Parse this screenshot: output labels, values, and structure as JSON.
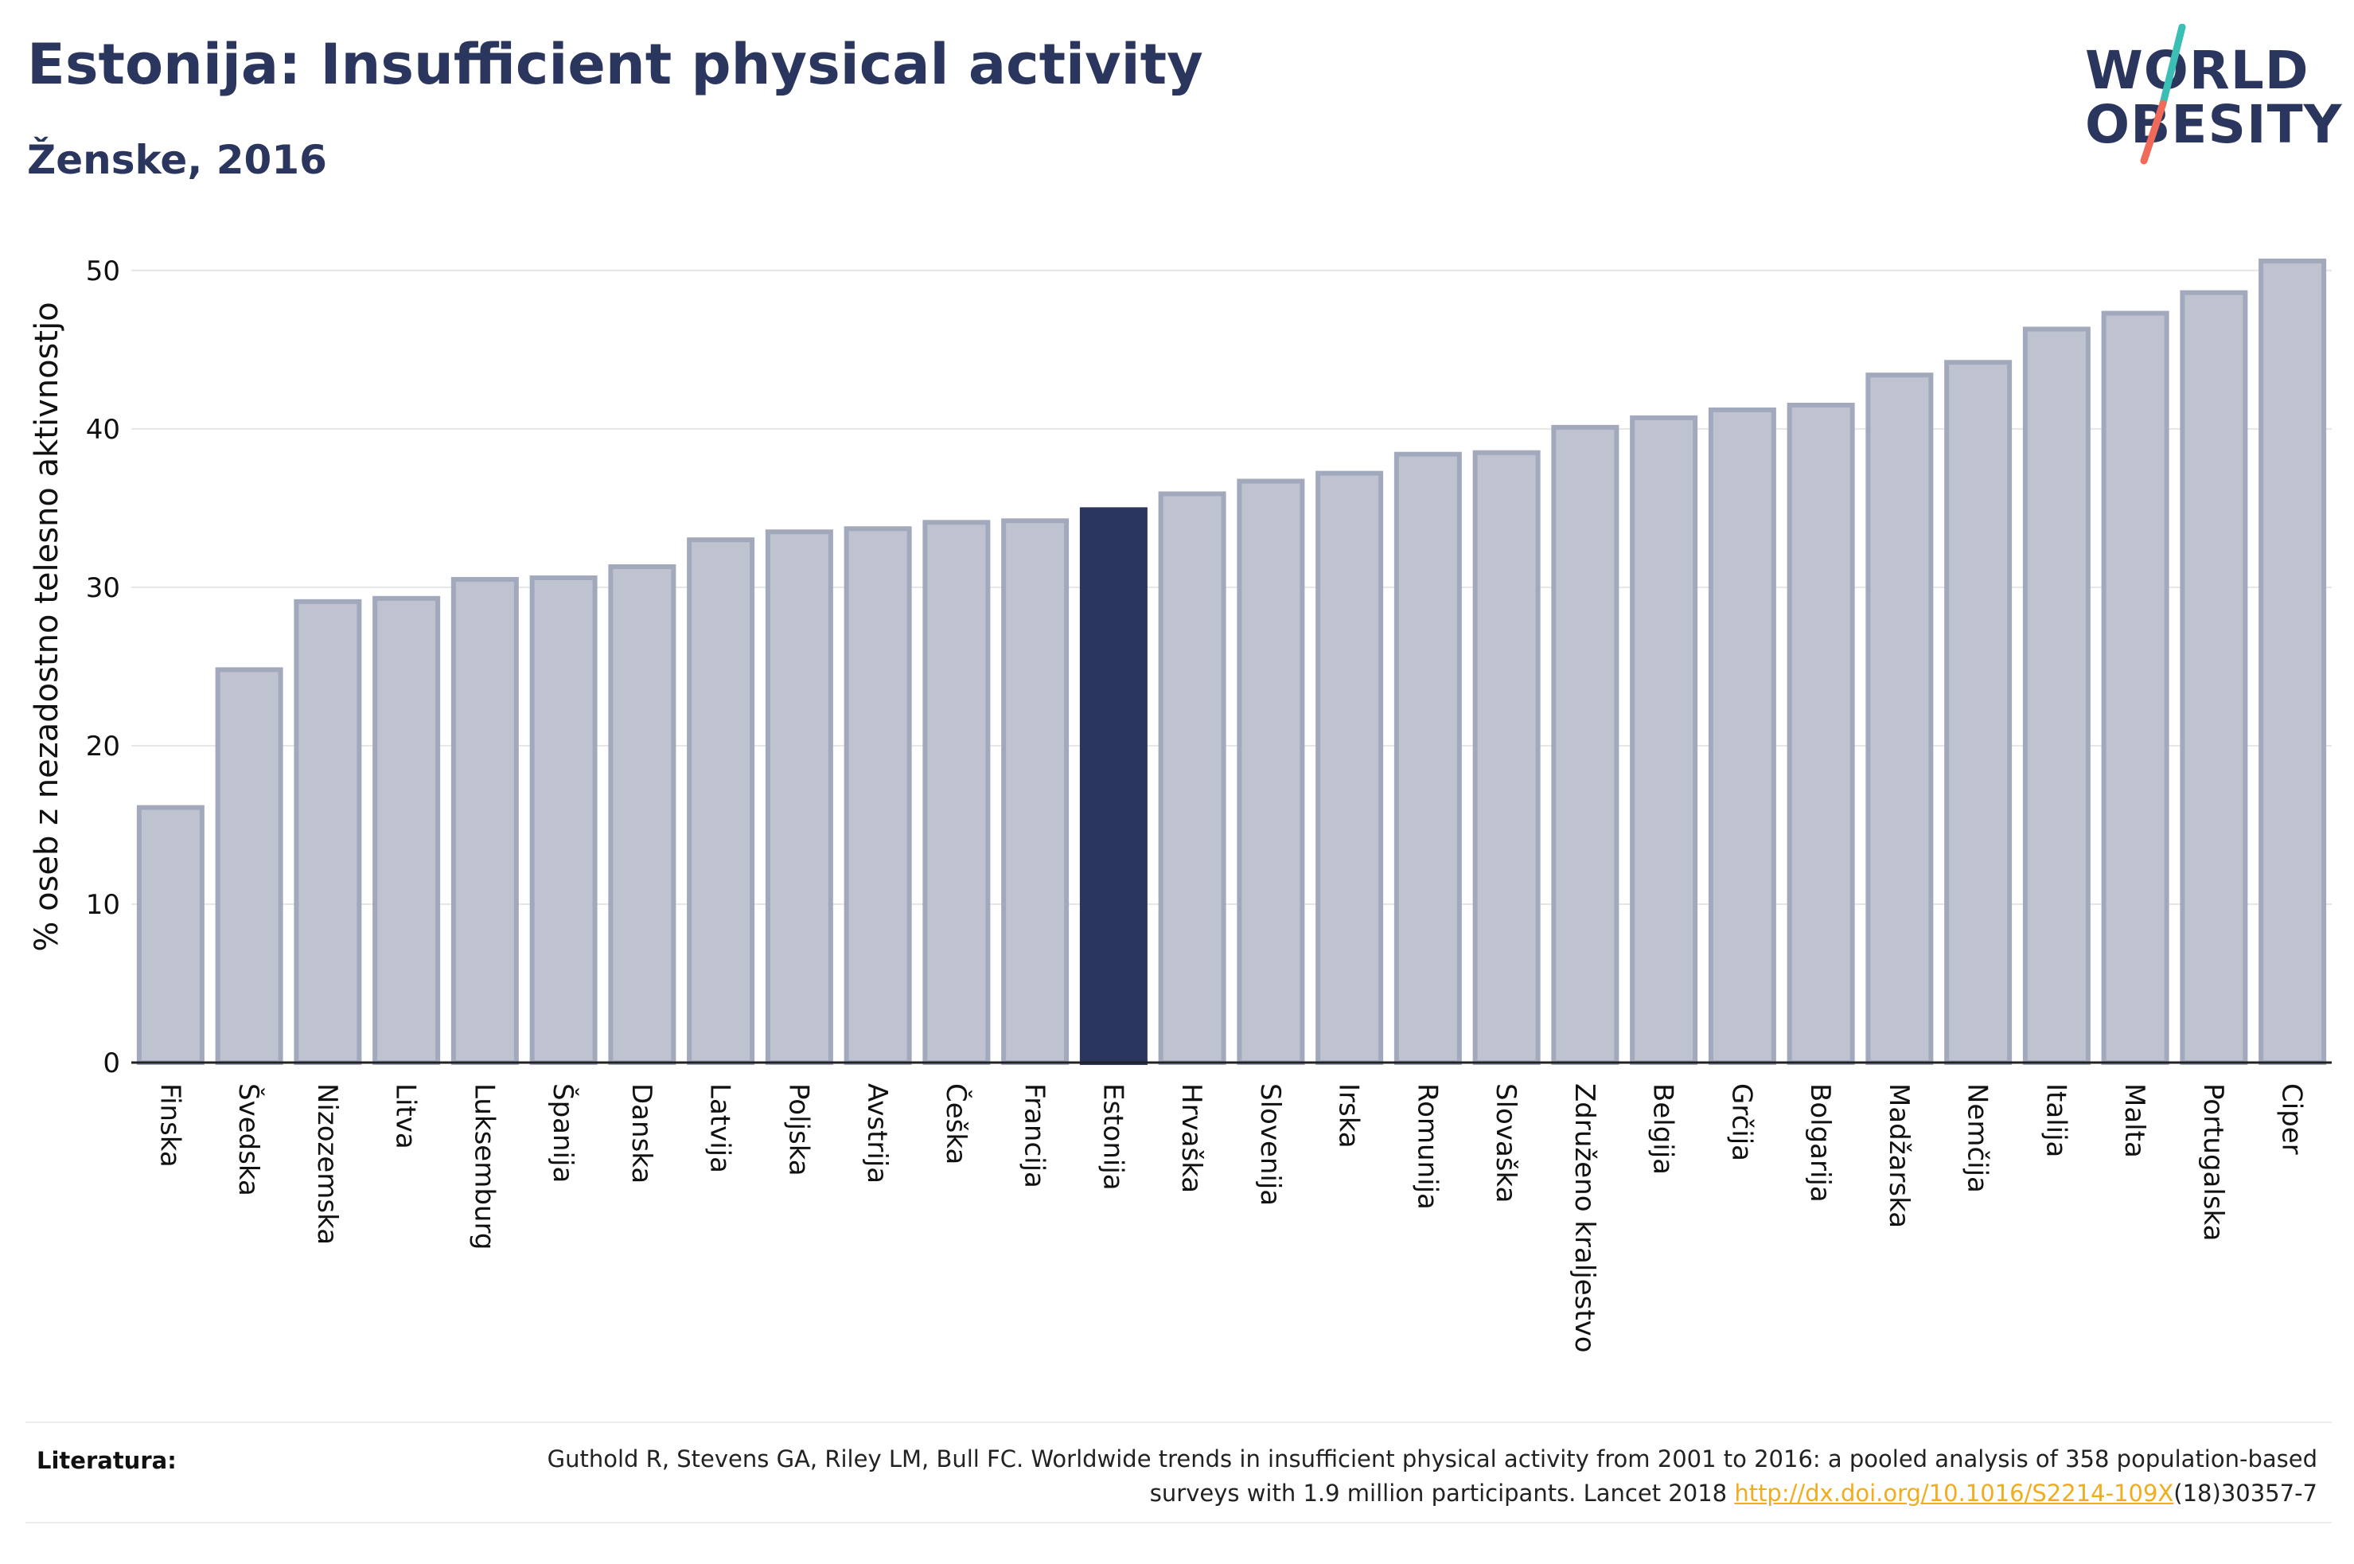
{
  "header": {
    "title": "Estonija: Insufficient physical activity",
    "subtitle": "Ženske, 2016"
  },
  "logo": {
    "line1": "WORLD",
    "line2": "OBESITY",
    "colors": {
      "text": "#2b365e",
      "slash_top": "#3bbfb5",
      "slash_bottom": "#f06a5a"
    }
  },
  "colors": {
    "bar": "#bfc3d0",
    "bar_outline": "#a3a9bd",
    "highlight": "#2b365e",
    "axis_text": "#111111",
    "grid": "#e6e6e6"
  },
  "chart_data": {
    "type": "bar",
    "ylabel": "% oseb z nezadostno telesno aktivnostjo",
    "ylim": [
      0,
      52
    ],
    "yticks": [
      0,
      10,
      20,
      30,
      40,
      50
    ],
    "grid": true,
    "highlight": "Estonija",
    "categories": [
      "Finska",
      "Švedska",
      "Nizozemska",
      "Litva",
      "Luksemburg",
      "Španija",
      "Danska",
      "Latvija",
      "Poljska",
      "Avstrija",
      "Češka",
      "Francija",
      "Estonija",
      "Hrvaška",
      "Slovenija",
      "Irska",
      "Romunija",
      "Slovaška",
      "Združeno kraljestvo",
      "Belgija",
      "Grčija",
      "Bolgarija",
      "Madžarska",
      "Nemčija",
      "Italija",
      "Malta",
      "Portugalska",
      "Ciper"
    ],
    "values": [
      16.1,
      24.8,
      29.1,
      29.3,
      30.5,
      30.6,
      31.3,
      33.0,
      33.5,
      33.7,
      34.1,
      34.2,
      34.9,
      35.9,
      36.7,
      37.2,
      38.4,
      38.5,
      40.1,
      40.7,
      41.2,
      41.5,
      43.4,
      44.2,
      46.3,
      47.3,
      48.6,
      50.6
    ]
  },
  "footer": {
    "label": "Literatura:",
    "text_part1": "Guthold R, Stevens GA, Riley LM, Bull FC. Worldwide trends in insufficient physical activity from 2001 to 2016: a pooled analysis of 358 population-based surveys with 1.9 million participants. Lancet 2018 ",
    "link": "http://dx.doi.org/10.1016/S2214-109X",
    "text_part2": "(18)30357-7"
  }
}
